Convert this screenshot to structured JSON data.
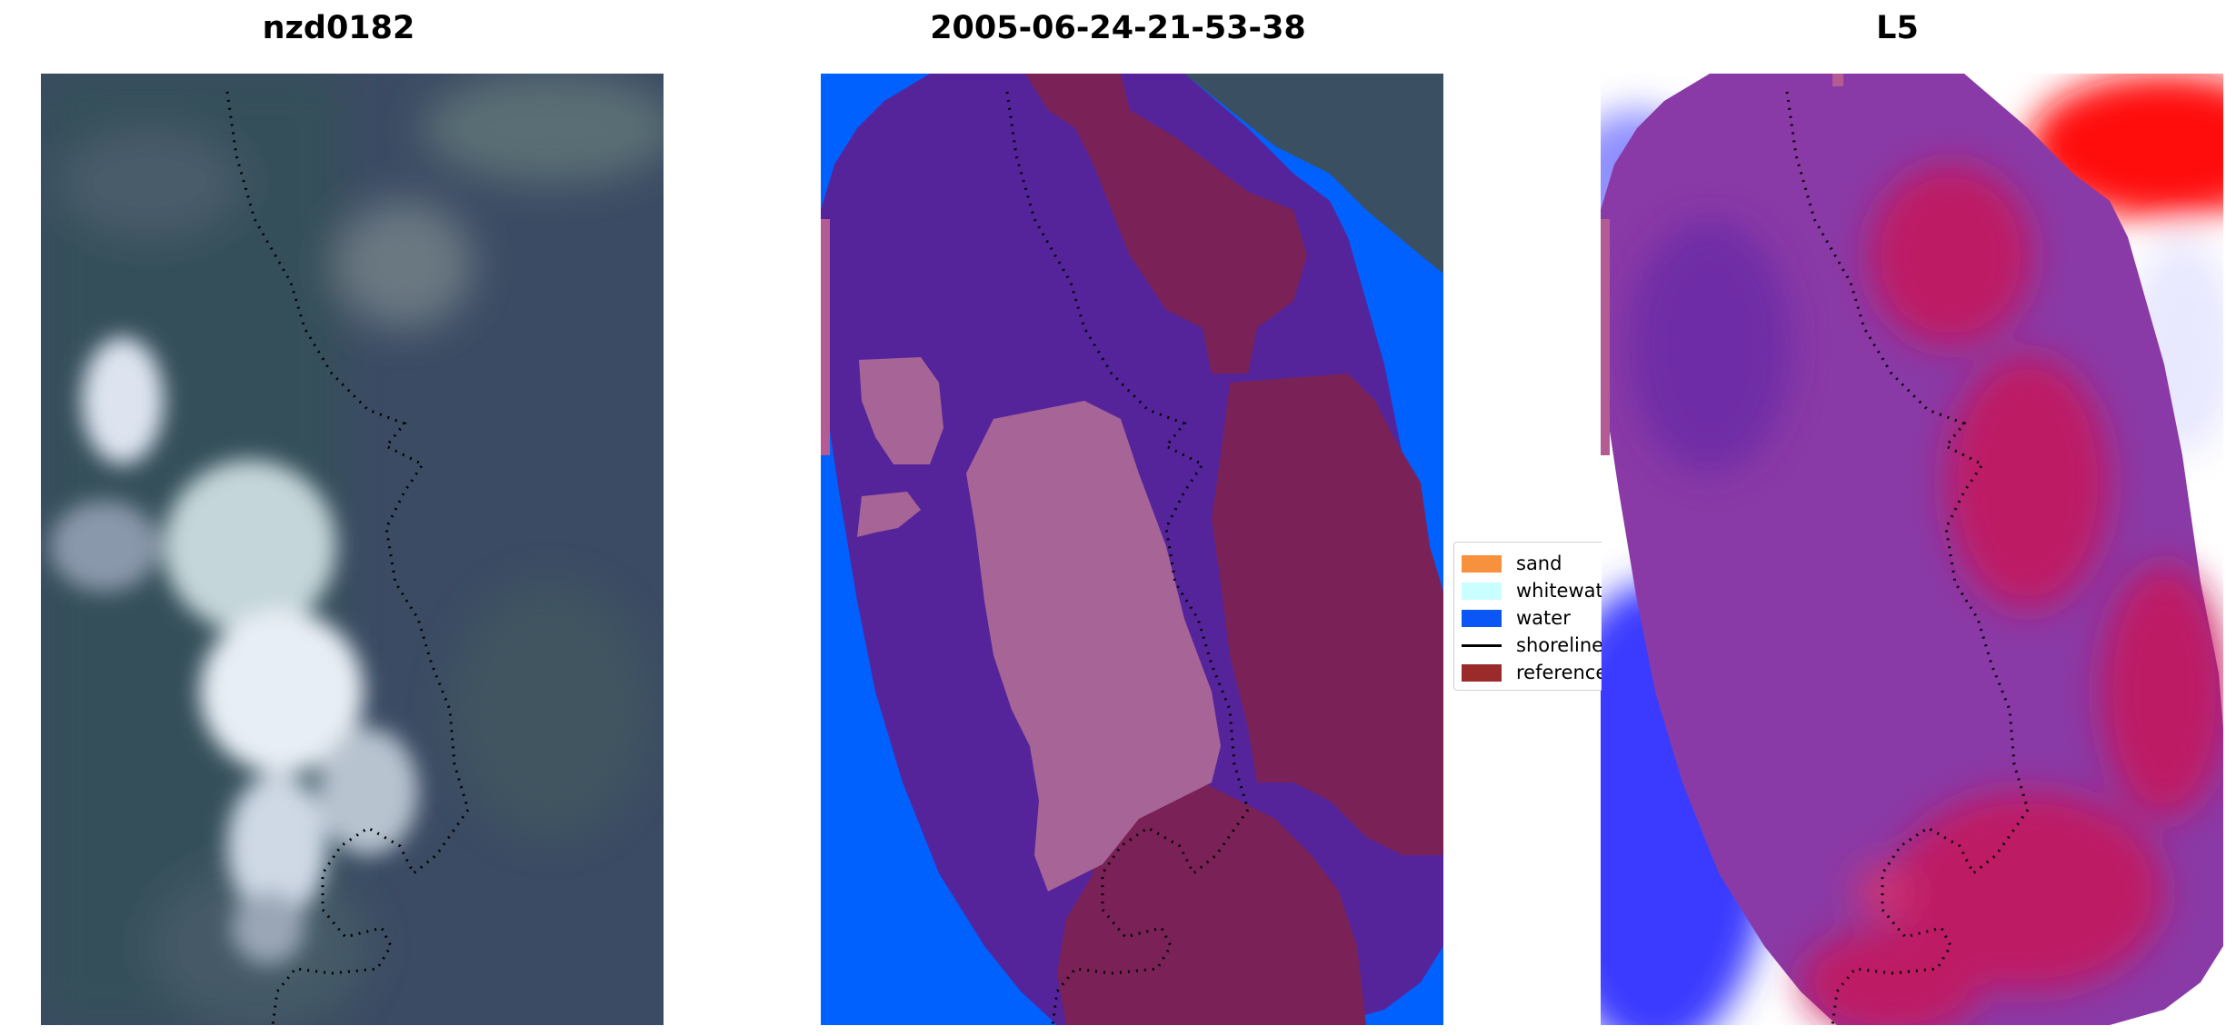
{
  "panels": [
    {
      "title": "nzd0182"
    },
    {
      "title": "2005-06-24-21-53-38"
    },
    {
      "title": "L5"
    }
  ],
  "legend": {
    "items": [
      {
        "label": "sand",
        "color": "#f8913d",
        "kind": "patch"
      },
      {
        "label": "whitewater",
        "color": "#c9ffff",
        "kind": "patch"
      },
      {
        "label": "water",
        "color": "#0b57f5",
        "kind": "patch"
      },
      {
        "label": "shoreline",
        "color": "#000000",
        "kind": "line"
      },
      {
        "label": "reference",
        "color": "#9b2a2a",
        "kind": "patch"
      }
    ]
  },
  "colors": {
    "water_class": "#0061ff",
    "land_class": "#55249a",
    "reference_overlay": "#7a2258",
    "whitewater_overlay": "#a66596",
    "satellite_bg": "#3b4b63",
    "heat_red": "#ff0000",
    "heat_blue": "#1a1aff"
  }
}
